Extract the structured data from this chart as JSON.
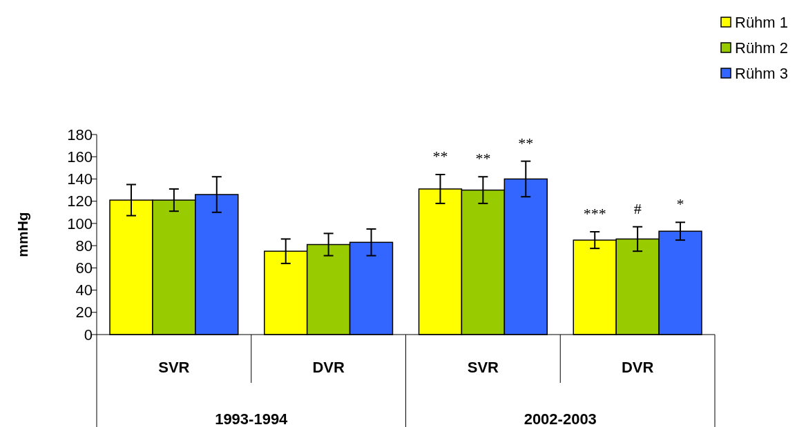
{
  "chart_data": {
    "type": "bar",
    "ylabel": "mmHg",
    "categories": [
      "SVR",
      "DVR",
      "SVR",
      "DVR"
    ],
    "series": [
      {
        "name": "Rühm 1",
        "color": "#ffff00",
        "values": [
          121,
          75,
          131,
          85
        ],
        "errors": [
          14,
          11,
          13,
          7.5
        ]
      },
      {
        "name": "Rühm 2",
        "color": "#99cc00",
        "values": [
          121,
          81,
          130,
          86
        ],
        "errors": [
          10,
          10,
          12,
          11
        ]
      },
      {
        "name": "Rühm 3",
        "color": "#3366ff",
        "values": [
          126,
          83,
          140,
          93
        ],
        "errors": [
          16,
          12,
          16,
          8
        ]
      }
    ],
    "ylim": [
      0,
      180
    ],
    "yticks": [
      0,
      20,
      40,
      60,
      80,
      100,
      120,
      140,
      160,
      180
    ],
    "grid": false,
    "legend": "top right",
    "annotations": [
      "1993-1994",
      "2002-2003",
      "**",
      "**",
      "**",
      "***",
      "#",
      "*"
    ]
  }
}
